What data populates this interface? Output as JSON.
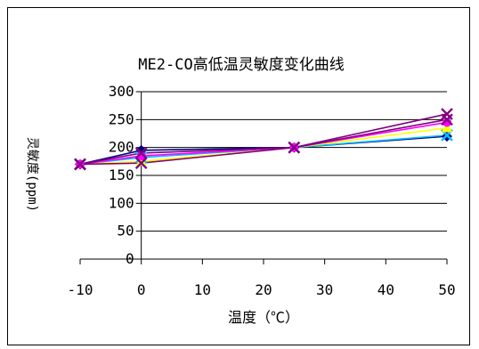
{
  "chart_data": {
    "type": "line",
    "title": "ME2-CO高低温灵敏度变化曲线",
    "xlabel": "温度（℃）",
    "ylabel": "灵敏度(ppm)",
    "x": [
      -10,
      0,
      25,
      50
    ],
    "x_ticks": [
      "-10",
      "0",
      "10",
      "20",
      "30",
      "40",
      "50"
    ],
    "y_ticks": [
      "0",
      "50",
      "100",
      "150",
      "200",
      "250",
      "300"
    ],
    "xlim": [
      -10,
      50
    ],
    "ylim": [
      0,
      300
    ],
    "grid": "horizontal",
    "series": [
      {
        "values": [
          170,
          195,
          200,
          220
        ],
        "color": "#000080",
        "marker": "diamond"
      },
      {
        "values": [
          170,
          182,
          200,
          222
        ],
        "color": "#00c0ff",
        "marker": "x"
      },
      {
        "values": [
          170,
          175,
          200,
          235
        ],
        "color": "#ffff00",
        "marker": "triangle"
      },
      {
        "values": [
          170,
          185,
          200,
          245
        ],
        "color": "#ff00ff",
        "marker": "circle"
      },
      {
        "values": [
          170,
          172,
          200,
          250
        ],
        "color": "#800080",
        "marker": "x"
      },
      {
        "values": [
          170,
          190,
          200,
          260
        ],
        "color": "#800080",
        "marker": "x"
      }
    ]
  }
}
